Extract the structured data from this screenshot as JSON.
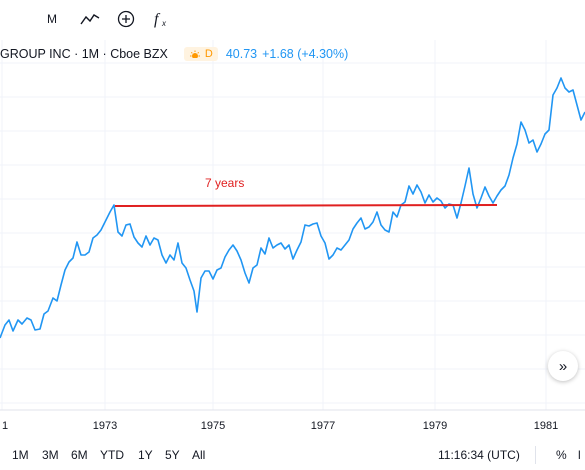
{
  "toolbar": {
    "items": [
      {
        "name": "M-label",
        "text": "M"
      },
      {
        "name": "chart-style-icon",
        "text": ""
      },
      {
        "name": "add-compare-icon",
        "text": ""
      },
      {
        "name": "indicators-icon",
        "text": ""
      }
    ]
  },
  "legend": {
    "symbol": "GROUP INC · 1M · Cboe BZX",
    "badge_letter": "D",
    "price": "40.73",
    "change": "+1.68 (+4.30%)"
  },
  "chart_data": {
    "type": "line",
    "x_ticks": [
      "1",
      "1973",
      "1975",
      "1977",
      "1979",
      "1981"
    ],
    "annotation": {
      "label": "7 years",
      "color": "#e02020"
    },
    "line_color": "#2196f3",
    "grid": true
  },
  "bottombar": {
    "ranges": [
      "1M",
      "3M",
      "6M",
      "YTD",
      "1Y",
      "5Y",
      "All"
    ],
    "time": "11:16:34 (UTC)",
    "options": [
      "%",
      "l"
    ]
  },
  "scroll_button": "»"
}
